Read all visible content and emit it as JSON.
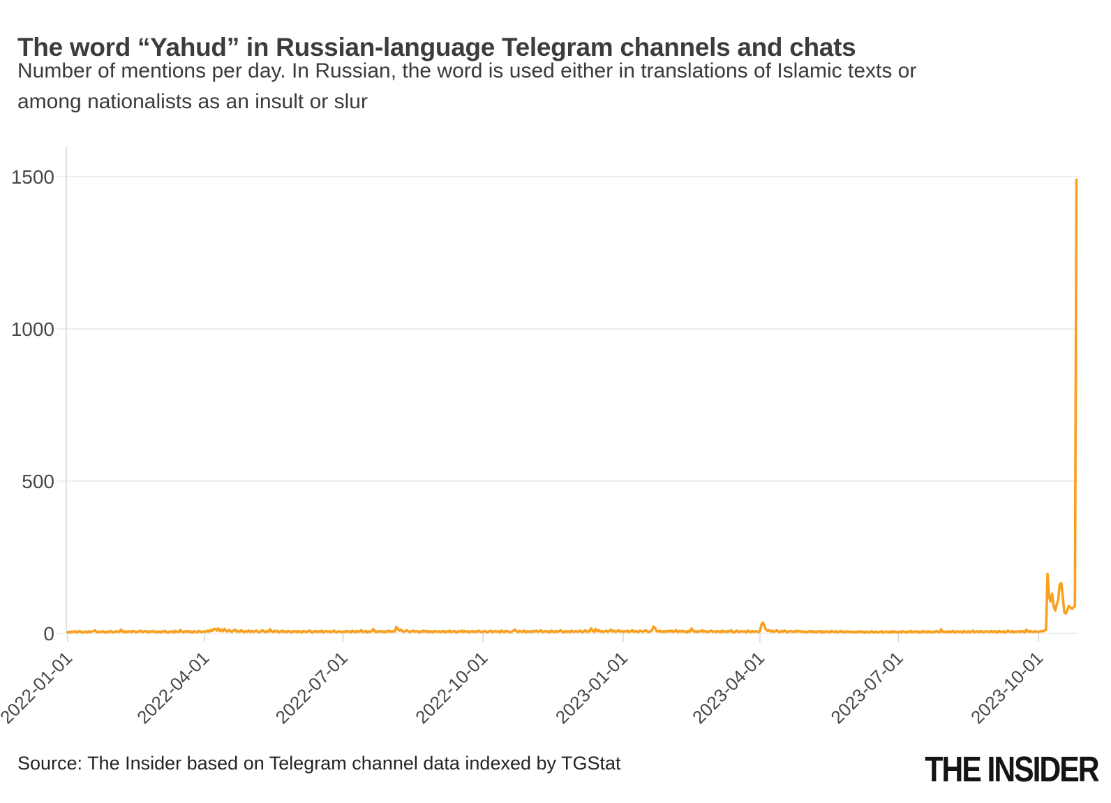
{
  "header": {
    "title": "The word “Yahud” in Russian-language Telegram channels and chats",
    "subtitle_lines": [
      "Number of mentions per day. In Russian, the word is used either in translations of Islamic texts or",
      "among nationalists as an insult or slur"
    ]
  },
  "chart_data": {
    "type": "line",
    "title": "The word “Yahud” in Russian-language Telegram channels and chats",
    "ylabel": "Number of mentions per day",
    "x_start_date": "2022-01-01",
    "x_end_date": "2023-10-26",
    "x_tick_labels": [
      "2022-01-01",
      "2022-04-01",
      "2022-07-01",
      "2022-10-01",
      "2023-01-01",
      "2023-04-01",
      "2023-07-01",
      "2023-10-01"
    ],
    "x_tick_days": [
      0,
      90,
      181,
      273,
      365,
      455,
      546,
      638
    ],
    "y_ticks": [
      0,
      500,
      1000,
      1500
    ],
    "ylim": [
      0,
      1500
    ],
    "grid_on": true,
    "legend": "none",
    "peak_value": 1490,
    "line_color": "#F9A01C",
    "grid_color": "#E8E8E8",
    "axis_color": "#D9D9D9",
    "label_color": "#474747",
    "series": [
      {
        "name": "mentions-per-day",
        "start_date": "2022-01-01",
        "values": [
          3,
          5,
          2,
          6,
          4,
          7,
          3,
          5,
          8,
          4,
          2,
          6,
          5,
          3,
          7,
          4,
          6,
          8,
          10,
          5,
          3,
          6,
          4,
          7,
          5,
          2,
          6,
          4,
          8,
          5,
          3,
          5,
          7,
          4,
          6,
          12,
          5,
          8,
          3,
          6,
          5,
          7,
          4,
          8,
          6,
          3,
          5,
          7,
          9,
          4,
          6,
          8,
          5,
          3,
          7,
          5,
          8,
          4,
          6,
          4,
          6,
          3,
          7,
          5,
          8,
          4,
          2,
          6,
          5,
          7,
          3,
          8,
          5,
          4,
          11,
          6,
          3,
          7,
          5,
          8,
          4,
          6,
          2,
          7,
          5,
          3,
          8,
          6,
          4,
          5,
          7,
          5,
          9,
          6,
          11,
          8,
          14,
          15,
          9,
          16,
          8,
          12,
          7,
          15,
          9,
          6,
          11,
          7,
          5,
          9,
          12,
          6,
          8,
          5,
          10,
          7,
          4,
          8,
          6,
          9,
          5,
          8,
          4,
          7,
          9,
          5,
          3,
          7,
          10,
          6,
          4,
          8,
          5,
          13,
          7,
          4,
          9,
          6,
          8,
          3,
          6,
          9,
          5,
          7,
          4,
          8,
          6,
          3,
          7,
          5,
          8,
          4,
          7,
          5,
          3,
          8,
          6,
          4,
          7,
          9,
          5,
          3,
          6,
          8,
          4,
          7,
          5,
          9,
          3,
          6,
          8,
          5,
          7,
          4,
          6,
          9,
          5,
          3,
          7,
          6,
          4,
          6,
          4,
          8,
          5,
          7,
          3,
          9,
          6,
          4,
          8,
          5,
          7,
          10,
          4,
          6,
          8,
          3,
          7,
          5,
          9,
          14,
          6,
          4,
          7,
          5,
          8,
          6,
          3,
          7,
          5,
          9,
          7,
          5,
          8,
          6,
          21,
          15,
          9,
          12,
          7,
          5,
          8,
          10,
          6,
          4,
          7,
          9,
          5,
          8,
          6,
          3,
          7,
          5,
          9,
          6,
          8,
          4,
          7,
          5,
          3,
          8,
          6,
          5,
          7,
          4,
          6,
          8,
          3,
          7,
          5,
          9,
          4,
          6,
          8,
          5,
          3,
          7,
          6,
          9,
          4,
          8,
          5,
          7,
          3,
          6,
          8,
          4,
          7,
          5,
          9,
          6,
          4,
          6,
          8,
          5,
          3,
          7,
          9,
          4,
          6,
          8,
          5,
          7,
          3,
          9,
          6,
          4,
          8,
          7,
          5,
          3,
          6,
          9,
          12,
          7,
          4,
          8,
          6,
          5,
          9,
          3,
          7,
          5,
          7,
          4,
          8,
          6,
          9,
          5,
          7,
          10,
          4,
          6,
          8,
          5,
          7,
          3,
          9,
          6,
          4,
          8,
          5,
          7,
          10,
          6,
          3,
          8,
          5,
          7,
          4,
          9,
          6,
          5,
          8,
          5,
          7,
          9,
          4,
          6,
          10,
          5,
          8,
          6,
          16,
          9,
          5,
          14,
          7,
          10,
          6,
          8,
          4,
          7,
          9,
          5,
          8,
          12,
          6,
          9,
          5,
          7,
          10,
          6,
          8,
          5,
          8,
          6,
          9,
          4,
          7,
          10,
          5,
          8,
          6,
          4,
          9,
          7,
          5,
          8,
          10,
          6,
          4,
          7,
          9,
          22,
          18,
          8,
          6,
          9,
          5,
          7,
          4,
          8,
          6,
          9,
          6,
          9,
          5,
          7,
          10,
          4,
          8,
          6,
          9,
          5,
          7,
          3,
          8,
          6,
          16,
          9,
          5,
          7,
          4,
          8,
          6,
          10,
          5,
          8,
          6,
          4,
          7,
          9,
          5,
          7,
          4,
          8,
          6,
          3,
          9,
          5,
          7,
          4,
          8,
          6,
          10,
          5,
          3,
          7,
          9,
          4,
          6,
          8,
          5,
          7,
          3,
          9,
          6,
          4,
          8,
          5,
          7,
          6,
          4,
          7,
          30,
          35,
          22,
          12,
          8,
          10,
          6,
          9,
          5,
          7,
          10,
          6,
          4,
          8,
          5,
          9,
          7,
          3,
          6,
          8,
          5,
          7,
          4,
          9,
          6,
          8,
          5,
          7,
          4,
          5,
          3,
          7,
          5,
          8,
          4,
          6,
          3,
          7,
          5,
          8,
          2,
          6,
          4,
          7,
          5,
          3,
          8,
          6,
          4,
          7,
          3,
          5,
          8,
          4,
          6,
          3,
          7,
          5,
          4,
          6,
          3,
          5,
          2,
          6,
          4,
          7,
          3,
          5,
          2,
          6,
          4,
          3,
          7,
          5,
          2,
          6,
          4,
          3,
          5,
          7,
          2,
          4,
          6,
          3,
          5,
          2,
          7,
          4,
          6,
          3,
          4,
          6,
          3,
          7,
          5,
          2,
          6,
          4,
          8,
          3,
          5,
          7,
          4,
          6,
          2,
          5,
          8,
          4,
          6,
          3,
          7,
          5,
          2,
          6,
          4,
          8,
          5,
          3,
          13,
          6,
          4,
          5,
          3,
          7,
          4,
          6,
          8,
          3,
          5,
          7,
          4,
          6,
          2,
          8,
          5,
          3,
          7,
          4,
          6,
          9,
          3,
          5,
          7,
          4,
          8,
          5,
          3,
          6,
          7,
          4,
          5,
          8,
          4,
          7,
          5,
          3,
          8,
          6,
          4,
          7,
          3,
          5,
          9,
          6,
          4,
          8,
          3,
          6,
          5,
          7,
          4,
          8,
          6,
          3,
          12,
          7,
          5,
          8,
          4,
          6,
          7,
          5,
          5,
          6,
          8,
          7,
          9,
          12,
          195,
          120,
          105,
          130,
          90,
          75,
          95,
          110,
          160,
          165,
          120,
          70,
          65,
          75,
          90,
          85,
          80,
          85,
          90,
          1490
        ]
      }
    ]
  },
  "footer": {
    "source": "Source: The Insider based on Telegram channel data indexed by TGStat",
    "logo_text": "THE INSIDER"
  }
}
